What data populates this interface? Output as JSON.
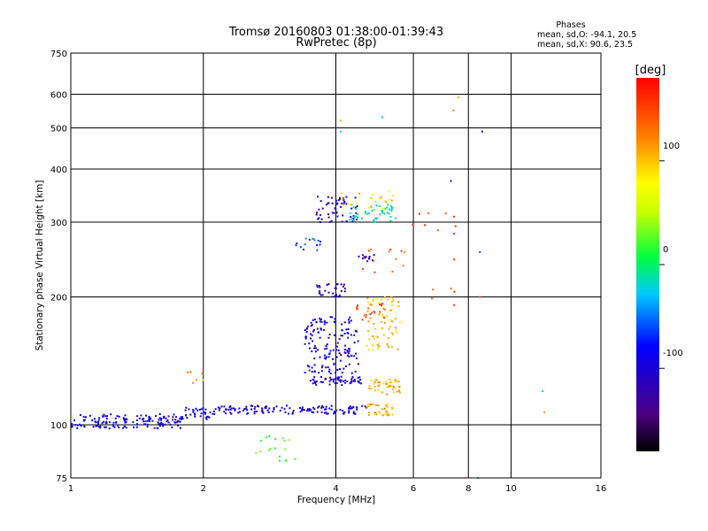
{
  "chart_data": {
    "type": "scatter",
    "title": "Tromsø 20160803 01:38:00-01:39:43",
    "subtitle": "RwPretec (8p)",
    "xlabel": "Frequency [MHz]",
    "ylabel": "Stationary phase Virtual Height [km]",
    "x_scale": "log",
    "y_scale": "log",
    "xlim": [
      1,
      16
    ],
    "ylim": [
      75,
      750
    ],
    "x_ticks": [
      1,
      2,
      4,
      6,
      8,
      10,
      16
    ],
    "x_tick_labels": [
      "1",
      "2",
      "4",
      "6",
      "8",
      "10",
      "16"
    ],
    "y_ticks": [
      75,
      100,
      200,
      300,
      400,
      500,
      600,
      750
    ],
    "y_tick_labels": [
      "75",
      "100",
      "200",
      "300",
      "400",
      "500",
      "600",
      "750"
    ],
    "grid": true,
    "stats": {
      "heading": "Phases",
      "o_line": "mean, sd,O: -94.1, 20.5",
      "x_line": "mean, sd,X:  90.6, 23.5"
    },
    "colorbar": {
      "label": "[deg]",
      "range": [
        -180,
        180
      ],
      "ticks": [
        100,
        0,
        -100
      ],
      "tick_labels": [
        "100",
        "0",
        "-100"
      ]
    },
    "clusters": [
      {
        "x": [
          1.0,
          1.8
        ],
        "y": [
          98,
          106
        ],
        "phase": -95,
        "n": 150
      },
      {
        "x": [
          1.82,
          2.08
        ],
        "y": [
          103,
          110
        ],
        "phase": -90,
        "n": 30
      },
      {
        "x": [
          2.1,
          4.7
        ],
        "y": [
          106,
          111
        ],
        "phase": -100,
        "n": 130
      },
      {
        "x": [
          3.5,
          4.6
        ],
        "y": [
          124,
          130
        ],
        "phase": -105,
        "n": 60
      },
      {
        "x": [
          3.4,
          4.5
        ],
        "y": [
          132,
          180
        ],
        "phase": -98,
        "n": 150
      },
      {
        "x": [
          3.6,
          4.2
        ],
        "y": [
          200,
          215
        ],
        "phase": -110,
        "n": 30
      },
      {
        "x": [
          3.6,
          4.5
        ],
        "y": [
          300,
          345
        ],
        "phase": -105,
        "n": 60
      },
      {
        "x": [
          4.3,
          5.5
        ],
        "y": [
          300,
          330
        ],
        "phase": -15,
        "n": 45
      },
      {
        "x": [
          4.0,
          5.6
        ],
        "y": [
          320,
          360
        ],
        "phase": 95,
        "n": 25
      },
      {
        "x": [
          4.7,
          5.6
        ],
        "y": [
          150,
          200
        ],
        "phase": 100,
        "n": 70
      },
      {
        "x": [
          4.7,
          5.4
        ],
        "y": [
          105,
          112
        ],
        "phase": 105,
        "n": 35
      },
      {
        "x": [
          4.7,
          5.6
        ],
        "y": [
          118,
          128
        ],
        "phase": 105,
        "n": 45
      },
      {
        "x": [
          4.4,
          5.2
        ],
        "y": [
          175,
          195
        ],
        "phase": 150,
        "n": 20
      },
      {
        "x": [
          3.2,
          3.7
        ],
        "y": [
          255,
          275
        ],
        "phase": -60,
        "n": 15
      },
      {
        "x": [
          4.5,
          4.9
        ],
        "y": [
          242,
          252
        ],
        "phase": -110,
        "n": 12
      },
      {
        "x": [
          2.6,
          3.3
        ],
        "y": [
          82,
          95
        ],
        "phase": 20,
        "n": 18
      },
      {
        "x": [
          4.6,
          5.8
        ],
        "y": [
          225,
          260
        ],
        "phase": 140,
        "n": 12
      },
      {
        "x": [
          5.8,
          7.5
        ],
        "y": [
          180,
          320
        ],
        "phase": 150,
        "n": 15
      },
      {
        "x": [
          1.8,
          2.1
        ],
        "y": [
          120,
          135
        ],
        "phase": 110,
        "n": 6
      }
    ],
    "points": [
      {
        "x": 7.6,
        "y": 590,
        "phase": 110
      },
      {
        "x": 7.4,
        "y": 550,
        "phase": 130
      },
      {
        "x": 5.1,
        "y": 530,
        "phase": -20
      },
      {
        "x": 4.1,
        "y": 520,
        "phase": 110
      },
      {
        "x": 8.6,
        "y": 490,
        "phase": -120
      },
      {
        "x": 4.1,
        "y": 490,
        "phase": -30
      },
      {
        "x": 7.3,
        "y": 375,
        "phase": -130
      },
      {
        "x": 8.5,
        "y": 255,
        "phase": -60
      },
      {
        "x": 8.5,
        "y": 200,
        "phase": 150
      },
      {
        "x": 11.8,
        "y": 120,
        "phase": -30
      },
      {
        "x": 11.9,
        "y": 107,
        "phase": 110
      },
      {
        "x": 8.4,
        "y": 75,
        "phase": -10
      }
    ]
  }
}
